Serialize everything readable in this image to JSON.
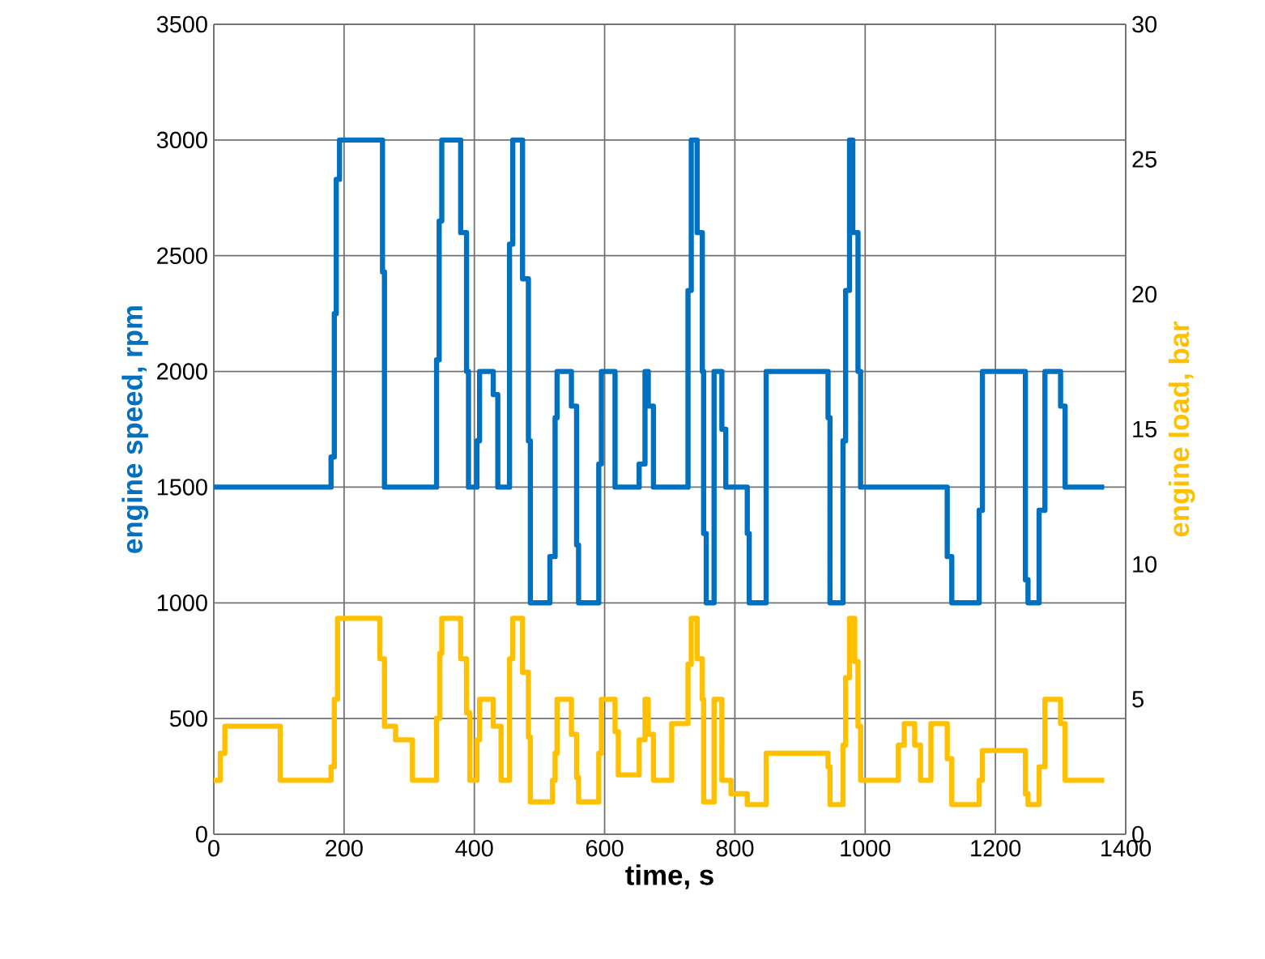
{
  "chart_data": {
    "type": "step",
    "xlabel": "time, s",
    "ylabel": "engine speed, rpm",
    "y2label": "engine load, bar",
    "xlim": [
      0,
      1400
    ],
    "xticks": [
      0,
      200,
      400,
      600,
      800,
      1000,
      1200,
      1400
    ],
    "ylim": [
      0,
      3500
    ],
    "yticks": [
      0,
      500,
      1000,
      1500,
      2000,
      2500,
      3000,
      3500
    ],
    "y2lim": [
      0,
      30
    ],
    "y2ticks": [
      0,
      5,
      10,
      15,
      20,
      25,
      30
    ],
    "grid": true,
    "line_style": "solid",
    "marker": "none",
    "series": [
      {
        "color": "#0070c0",
        "x": [
          0,
          180,
          185,
          188,
          193,
          259,
          262,
          342,
          346,
          350,
          379,
          388,
          391,
          404,
          408,
          429,
          436,
          454,
          459,
          474,
          483,
          486,
          516,
          524,
          527,
          549,
          557,
          560,
          591,
          595,
          616,
          653,
          662,
          667,
          675,
          728,
          733,
          742,
          750,
          752,
          756,
          768,
          780,
          786,
          819,
          822,
          848,
          943,
          946,
          966,
          970,
          976,
          981,
          989,
          993,
          1126,
          1133,
          1175,
          1180,
          1246,
          1250,
          1267,
          1276,
          1300,
          1307,
          1367
        ],
        "values": [
          1500,
          1630,
          2250,
          2830,
          3000,
          2430,
          1500,
          2050,
          2650,
          3000,
          2600,
          2000,
          1500,
          1700,
          2000,
          1900,
          1500,
          2550,
          3000,
          2400,
          1700,
          1000,
          1200,
          1800,
          2000,
          1850,
          1250,
          1000,
          1600,
          2000,
          1500,
          1600,
          2000,
          1850,
          1500,
          2350,
          3000,
          2600,
          2000,
          1300,
          1000,
          2000,
          1750,
          1500,
          1300,
          1000,
          2000,
          1800,
          1000,
          1700,
          2350,
          3000,
          2600,
          2000,
          1500,
          1200,
          1000,
          1400,
          2000,
          1100,
          1000,
          1400,
          2000,
          1850,
          1500,
          1500
        ]
      },
      {
        "color": "#ffc000",
        "axis": "y2",
        "x": [
          0,
          10,
          17,
          97,
          102,
          180,
          185,
          190,
          255,
          262,
          279,
          305,
          342,
          347,
          350,
          379,
          388,
          393,
          404,
          408,
          429,
          441,
          454,
          459,
          474,
          483,
          486,
          520,
          524,
          527,
          549,
          557,
          560,
          591,
          595,
          616,
          621,
          653,
          662,
          667,
          675,
          703,
          728,
          733,
          742,
          750,
          752,
          768,
          780,
          794,
          819,
          848,
          943,
          946,
          966,
          970,
          976,
          984,
          989,
          993,
          1051,
          1060,
          1076,
          1085,
          1101,
          1126,
          1133,
          1175,
          1180,
          1246,
          1250,
          1267,
          1276,
          1300,
          1307,
          1367
        ],
        "values": [
          2,
          3,
          4,
          4,
          2,
          2.5,
          5,
          8,
          6.5,
          4,
          3.5,
          2,
          4.3,
          6.7,
          8,
          6.5,
          4.5,
          2,
          3.5,
          5,
          4,
          2,
          6.5,
          8,
          6,
          3.6,
          1.2,
          2,
          3,
          5,
          3.7,
          2.1,
          1.2,
          3,
          5,
          3.8,
          2.2,
          3.5,
          5,
          3.7,
          2,
          4.1,
          6.3,
          8,
          6.5,
          5,
          1.2,
          5,
          2,
          1.5,
          1.1,
          3,
          2.5,
          1.1,
          3.3,
          5.8,
          8,
          6.4,
          4,
          2,
          3.3,
          4.1,
          3.3,
          2,
          4.1,
          2.8,
          1.1,
          2,
          3.1,
          1.5,
          1.1,
          2.5,
          5,
          4.1,
          2,
          2
        ]
      }
    ]
  }
}
